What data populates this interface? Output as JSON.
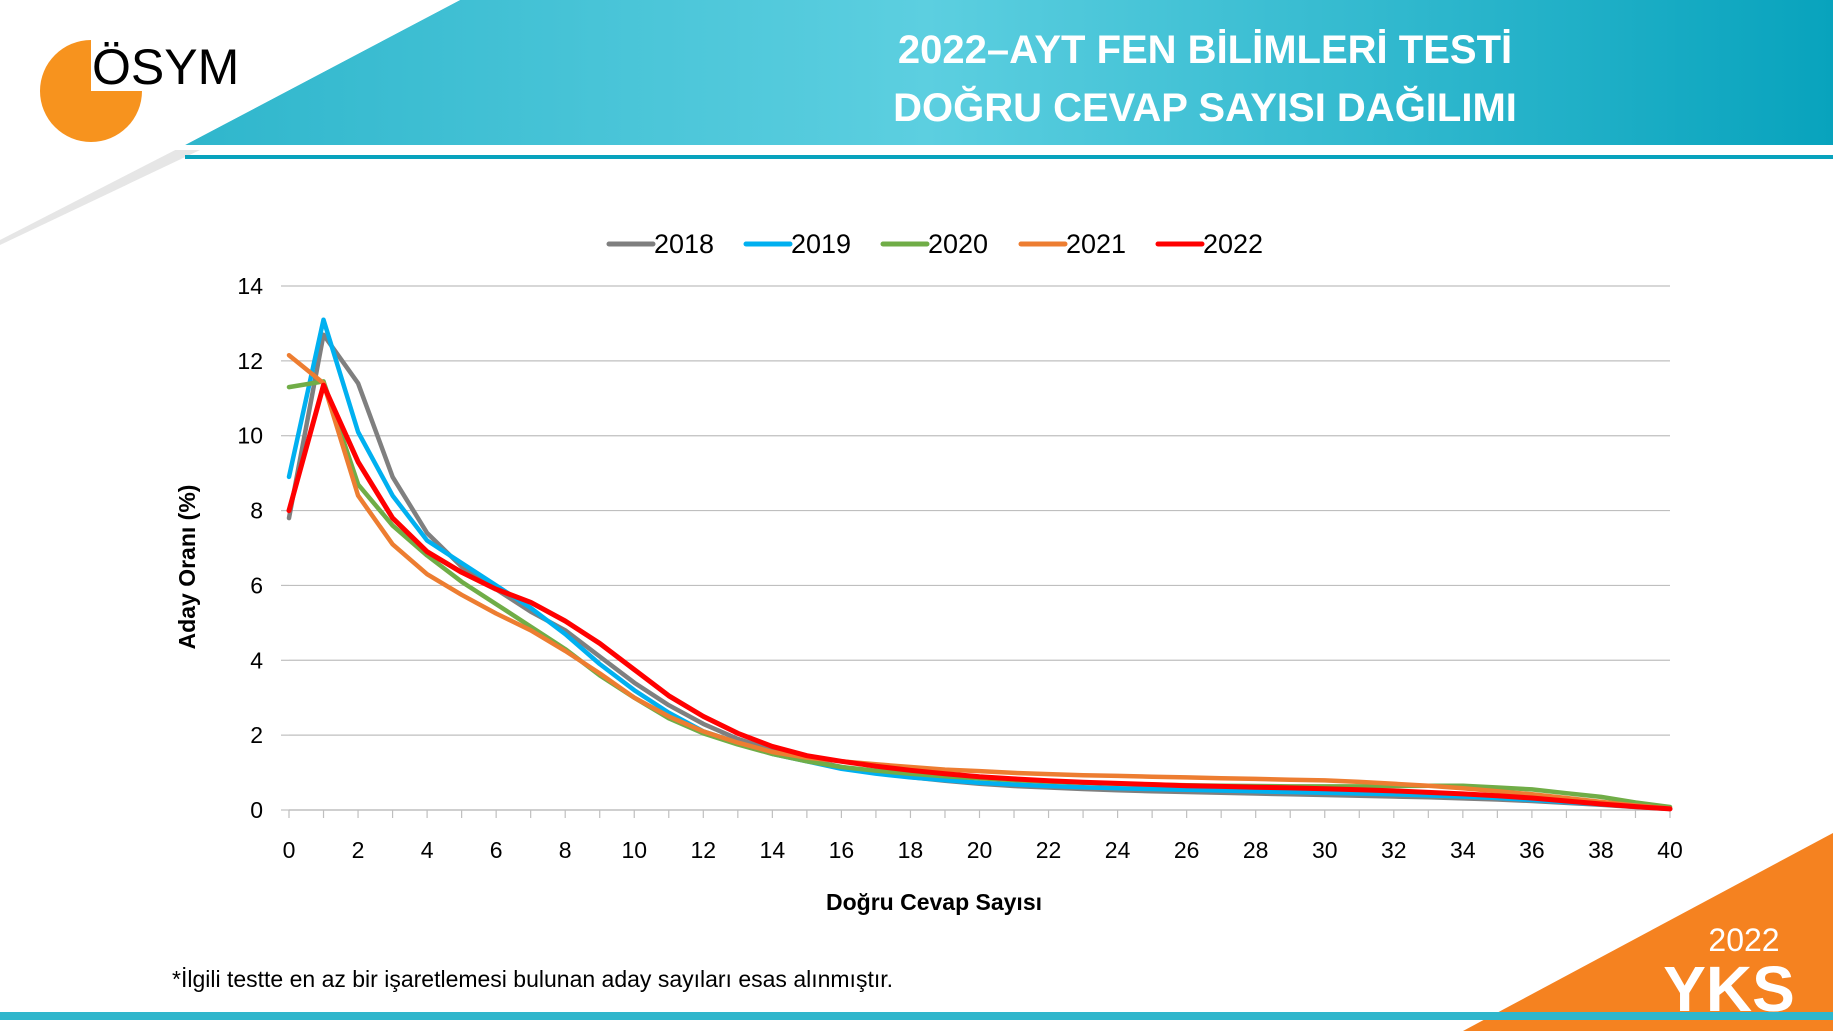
{
  "header": {
    "logo_text": "ÖSYM",
    "title_line1": "2022–AYT FEN BİLİMLERİ TESTİ",
    "title_line2": "DOĞRU CEVAP SAYISI DAĞILIMI"
  },
  "colors": {
    "header_teal": "#0aa6c0",
    "header_teal_light": "#5ccfe0",
    "accent_orange": "#f58220",
    "logo_orange": "#f7931e"
  },
  "chart_data": {
    "type": "line",
    "xlabel": "Doğru Cevap Sayısı",
    "ylabel": "Aday Oranı (%)",
    "xlim": [
      0,
      40
    ],
    "ylim": [
      0,
      14
    ],
    "xticks": [
      "0",
      "2",
      "4",
      "6",
      "8",
      "10",
      "12",
      "14",
      "16",
      "18",
      "20",
      "22",
      "24",
      "26",
      "28",
      "30",
      "32",
      "34",
      "36",
      "38",
      "40"
    ],
    "yticks": [
      "0",
      "2",
      "4",
      "6",
      "8",
      "10",
      "12",
      "14"
    ],
    "grid": true,
    "legend_position": "top-center",
    "x": [
      0,
      1,
      2,
      3,
      4,
      5,
      6,
      7,
      8,
      9,
      10,
      11,
      12,
      13,
      14,
      15,
      16,
      17,
      18,
      19,
      20,
      21,
      22,
      23,
      24,
      25,
      26,
      27,
      28,
      29,
      30,
      31,
      32,
      33,
      34,
      35,
      36,
      37,
      38,
      39,
      40
    ],
    "series": [
      {
        "name": "2018",
        "color": "#7f7f7f",
        "values": [
          7.8,
          12.7,
          11.4,
          8.9,
          7.4,
          6.5,
          5.9,
          5.3,
          4.8,
          4.1,
          3.4,
          2.8,
          2.3,
          1.9,
          1.6,
          1.35,
          1.15,
          1.0,
          0.88,
          0.78,
          0.7,
          0.64,
          0.6,
          0.56,
          0.53,
          0.5,
          0.48,
          0.46,
          0.44,
          0.42,
          0.4,
          0.38,
          0.36,
          0.34,
          0.31,
          0.28,
          0.24,
          0.19,
          0.14,
          0.08,
          0.03
        ]
      },
      {
        "name": "2019",
        "color": "#00b0f0",
        "values": [
          8.9,
          13.1,
          10.1,
          8.4,
          7.2,
          6.6,
          6.0,
          5.4,
          4.7,
          3.9,
          3.2,
          2.6,
          2.1,
          1.8,
          1.5,
          1.3,
          1.1,
          0.97,
          0.87,
          0.8,
          0.73,
          0.68,
          0.64,
          0.61,
          0.58,
          0.56,
          0.54,
          0.52,
          0.5,
          0.48,
          0.46,
          0.44,
          0.42,
          0.39,
          0.36,
          0.32,
          0.27,
          0.21,
          0.15,
          0.09,
          0.03
        ]
      },
      {
        "name": "2020",
        "color": "#70ad47",
        "values": [
          11.3,
          11.45,
          8.7,
          7.6,
          6.8,
          6.1,
          5.5,
          4.9,
          4.3,
          3.6,
          3.0,
          2.45,
          2.05,
          1.75,
          1.5,
          1.3,
          1.15,
          1.05,
          0.97,
          0.9,
          0.85,
          0.8,
          0.76,
          0.73,
          0.7,
          0.68,
          0.66,
          0.65,
          0.64,
          0.63,
          0.63,
          0.63,
          0.64,
          0.65,
          0.65,
          0.6,
          0.55,
          0.45,
          0.35,
          0.2,
          0.08
        ]
      },
      {
        "name": "2021",
        "color": "#ed7d31",
        "values": [
          12.15,
          11.4,
          8.4,
          7.1,
          6.3,
          5.75,
          5.25,
          4.8,
          4.25,
          3.65,
          3.0,
          2.5,
          2.1,
          1.8,
          1.55,
          1.4,
          1.3,
          1.22,
          1.15,
          1.08,
          1.04,
          0.99,
          0.96,
          0.93,
          0.91,
          0.89,
          0.87,
          0.85,
          0.83,
          0.81,
          0.79,
          0.75,
          0.7,
          0.65,
          0.58,
          0.5,
          0.42,
          0.32,
          0.22,
          0.12,
          0.04
        ]
      },
      {
        "name": "2022",
        "color": "#ff0000",
        "values": [
          8.0,
          11.35,
          9.3,
          7.8,
          6.9,
          6.35,
          5.9,
          5.55,
          5.05,
          4.45,
          3.75,
          3.05,
          2.5,
          2.05,
          1.7,
          1.45,
          1.3,
          1.17,
          1.06,
          0.97,
          0.89,
          0.83,
          0.78,
          0.74,
          0.71,
          0.68,
          0.65,
          0.63,
          0.61,
          0.59,
          0.57,
          0.54,
          0.51,
          0.47,
          0.43,
          0.38,
          0.32,
          0.24,
          0.16,
          0.09,
          0.03
        ]
      }
    ]
  },
  "footnote": "*İlgili testte en az bir işaretlemesi bulunan aday sayıları esas alınmıştır.",
  "brand": {
    "year": "2022",
    "name": "YKS"
  }
}
